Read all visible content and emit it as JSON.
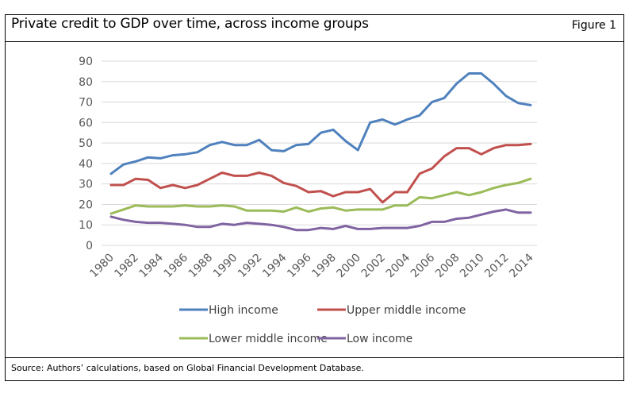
{
  "figure": {
    "title": "Private credit to GDP over time, across income groups",
    "label": "Figure 1",
    "source": "Source: Authors’ calculations, based on Global Financial Development Database."
  },
  "chart_data": {
    "type": "line",
    "title": "Private credit to GDP over time, across income groups",
    "xlabel": "",
    "ylabel": "",
    "ylim": [
      0,
      90
    ],
    "yticks": [
      0,
      10,
      20,
      30,
      40,
      50,
      60,
      70,
      80,
      90
    ],
    "x": [
      1980,
      1981,
      1982,
      1983,
      1984,
      1985,
      1986,
      1987,
      1988,
      1989,
      1990,
      1991,
      1992,
      1993,
      1994,
      1995,
      1996,
      1997,
      1998,
      1999,
      2000,
      2001,
      2002,
      2003,
      2004,
      2005,
      2006,
      2007,
      2008,
      2009,
      2010,
      2011,
      2012,
      2013,
      2014
    ],
    "xticks": [
      "1980",
      "1982",
      "1984",
      "1986",
      "1988",
      "1990",
      "1992",
      "1994",
      "1996",
      "1998",
      "2000",
      "2002",
      "2004",
      "2006",
      "2008",
      "2010",
      "2012",
      "2014"
    ],
    "grid": "horizontal",
    "legend_position": "bottom",
    "series": [
      {
        "name": "High income",
        "color": "#4f81bd",
        "values": [
          35,
          39.5,
          41,
          43,
          42.5,
          44,
          44.5,
          45.5,
          49,
          50.5,
          49,
          49,
          51.5,
          46.5,
          46,
          49,
          49.5,
          55,
          56.5,
          51,
          46.5,
          60,
          61.5,
          59,
          61.5,
          63.5,
          70,
          72,
          79,
          84,
          84,
          79,
          73,
          69.5,
          68.5
        ]
      },
      {
        "name": "Upper middle income",
        "color": "#c0504d",
        "values": [
          29.5,
          29.5,
          32.5,
          32,
          28,
          29.5,
          28,
          29.5,
          32.5,
          35.5,
          34,
          34,
          35.5,
          34,
          30.5,
          29,
          26,
          26.5,
          24,
          26,
          26,
          27.5,
          21,
          26,
          26,
          35,
          37.5,
          43.5,
          47.5,
          47.5,
          44.5,
          47.5,
          49,
          49,
          49.5
        ]
      },
      {
        "name": "Lower middle income",
        "color": "#9bbb59",
        "values": [
          15.5,
          17.5,
          19.5,
          19,
          19,
          19,
          19.5,
          19,
          19,
          19.5,
          19,
          17,
          17,
          17,
          16.5,
          18.5,
          16.5,
          18,
          18.5,
          17,
          17.5,
          17.5,
          17.5,
          19.5,
          19.5,
          23.5,
          23,
          24.5,
          26,
          24.5,
          26,
          28,
          29.5,
          30.5,
          32.5
        ]
      },
      {
        "name": "Low income",
        "color": "#8064a2",
        "values": [
          14,
          12.5,
          11.5,
          11,
          11,
          10.5,
          10,
          9,
          9,
          10.5,
          10,
          11,
          10.5,
          10,
          9,
          7.5,
          7.5,
          8.5,
          8,
          9.5,
          8,
          8,
          8.5,
          8.5,
          8.5,
          9.5,
          11.5,
          11.5,
          13,
          13.5,
          15,
          16.5,
          17.5,
          16,
          16
        ]
      }
    ]
  }
}
